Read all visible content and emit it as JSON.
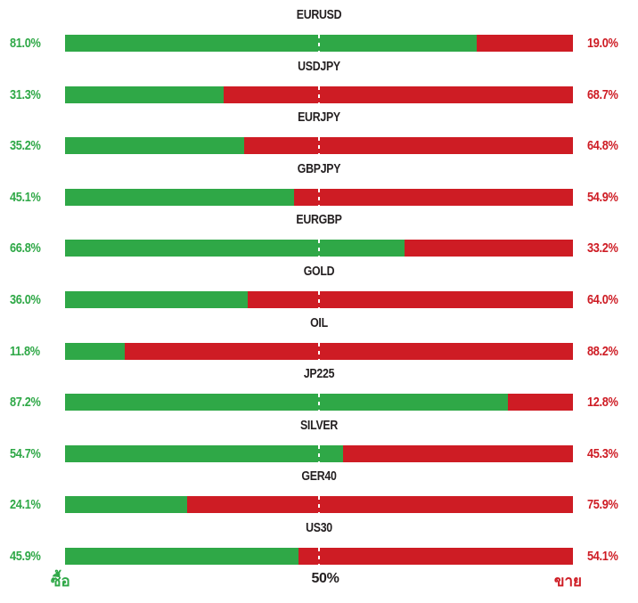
{
  "colors": {
    "buy": "#2fa847",
    "sell": "#ce1c24",
    "title": "#231f20",
    "midline": "#ffffff",
    "background": "#ffffff"
  },
  "chart_data": {
    "type": "bar",
    "subtype": "horizontal-stacked-sentiment",
    "orientation": "horizontal",
    "unit": "%",
    "xlim": [
      0,
      100
    ],
    "grid": false,
    "legend_position": "bottom",
    "categories": [
      "EURUSD",
      "USDJPY",
      "EURJPY",
      "GBPJPY",
      "EURGBP",
      "GOLD",
      "OIL",
      "JP225",
      "SILVER",
      "GER40",
      "US30"
    ],
    "series": [
      {
        "name": "ซื้อ",
        "color": "#2fa847",
        "values": [
          81.0,
          31.3,
          35.2,
          45.1,
          66.8,
          36.0,
          11.8,
          87.2,
          54.7,
          24.1,
          45.9
        ]
      },
      {
        "name": "ขาย",
        "color": "#ce1c24",
        "values": [
          19.0,
          68.7,
          64.8,
          54.9,
          33.2,
          64.0,
          88.2,
          12.8,
          45.3,
          75.9,
          54.1
        ]
      }
    ],
    "rows": [
      {
        "symbol": "EURUSD",
        "buy": 81.0,
        "sell": 19.0,
        "buy_label": "81.0%",
        "sell_label": "19.0%"
      },
      {
        "symbol": "USDJPY",
        "buy": 31.3,
        "sell": 68.7,
        "buy_label": "31.3%",
        "sell_label": "68.7%"
      },
      {
        "symbol": "EURJPY",
        "buy": 35.2,
        "sell": 64.8,
        "buy_label": "35.2%",
        "sell_label": "64.8%"
      },
      {
        "symbol": "GBPJPY",
        "buy": 45.1,
        "sell": 54.9,
        "buy_label": "45.1%",
        "sell_label": "54.9%"
      },
      {
        "symbol": "EURGBP",
        "buy": 66.8,
        "sell": 33.2,
        "buy_label": "66.8%",
        "sell_label": "33.2%"
      },
      {
        "symbol": "GOLD",
        "buy": 36.0,
        "sell": 64.0,
        "buy_label": "36.0%",
        "sell_label": "64.0%"
      },
      {
        "symbol": "OIL",
        "buy": 11.8,
        "sell": 88.2,
        "buy_label": "11.8%",
        "sell_label": "88.2%"
      },
      {
        "symbol": "JP225",
        "buy": 87.2,
        "sell": 12.8,
        "buy_label": "87.2%",
        "sell_label": "12.8%"
      },
      {
        "symbol": "SILVER",
        "buy": 54.7,
        "sell": 45.3,
        "buy_label": "54.7%",
        "sell_label": "45.3%"
      },
      {
        "symbol": "GER40",
        "buy": 24.1,
        "sell": 75.9,
        "buy_label": "24.1%",
        "sell_label": "75.9%"
      },
      {
        "symbol": "US30",
        "buy": 45.9,
        "sell": 54.1,
        "buy_label": "45.9%",
        "sell_label": "54.1%"
      }
    ],
    "midline": {
      "value": 50,
      "label": "50%",
      "style": "dashed-white"
    },
    "legend": {
      "buy": "ซื้อ",
      "mid": "50%",
      "sell": "ขาย"
    }
  }
}
